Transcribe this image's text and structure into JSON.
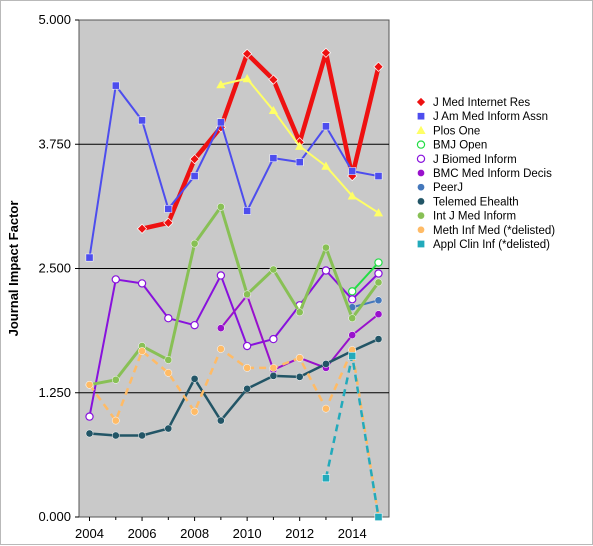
{
  "chart_data": {
    "type": "line",
    "title": "",
    "xlabel": "",
    "ylabel": "Journal Impact Factor",
    "xlim": [
      2003.6,
      2015.4
    ],
    "ylim": [
      0,
      5
    ],
    "x_ticks": [
      2004,
      2006,
      2008,
      2010,
      2012,
      2014
    ],
    "x_tick_labels": [
      "2004",
      "2006",
      "2008",
      "2010",
      "2012",
      "2014"
    ],
    "y_ticks": [
      0,
      1.25,
      2.5,
      3.75,
      5
    ],
    "y_tick_labels": [
      "0.000",
      "1.250",
      "2.500",
      "3.750",
      "5.000"
    ],
    "grid": "horizontal major lines at y ticks",
    "legend_position": "right",
    "plot_background": "#c9c9c9",
    "series": [
      {
        "name": "J Med Internet Res",
        "color": "#ee1111",
        "marker": "diamond",
        "dashed": false,
        "width": 4.5,
        "x": [
          2006,
          2007,
          2008,
          2009,
          2010,
          2011,
          2012,
          2013,
          2014,
          2015
        ],
        "y": [
          2.9,
          2.96,
          3.6,
          3.92,
          4.66,
          4.4,
          3.77,
          4.67,
          3.43,
          4.53
        ]
      },
      {
        "name": "J Am Med Inform Assn",
        "color": "#4d4dee",
        "marker": "square",
        "dashed": false,
        "width": 2,
        "x": [
          2004,
          2005,
          2006,
          2007,
          2008,
          2009,
          2010,
          2011,
          2012,
          2013,
          2014,
          2015
        ],
        "y": [
          2.61,
          4.34,
          3.99,
          3.1,
          3.43,
          3.97,
          3.08,
          3.61,
          3.57,
          3.93,
          3.48,
          3.43
        ]
      },
      {
        "name": "Plos One",
        "color": "#ffff66",
        "marker": "triangle",
        "dashed": false,
        "width": 2,
        "x": [
          2009,
          2010,
          2011,
          2012,
          2013,
          2014,
          2015
        ],
        "y": [
          4.35,
          4.41,
          4.09,
          3.73,
          3.53,
          3.23,
          3.06
        ]
      },
      {
        "name": "BMJ Open",
        "color": "#22dd44",
        "marker": "circle-open",
        "dashed": false,
        "width": 2,
        "x": [
          2014,
          2015
        ],
        "y": [
          2.27,
          2.56
        ]
      },
      {
        "name": "J Biomed Inform",
        "color": "#8811dd",
        "marker": "circle-open",
        "dashed": false,
        "width": 2,
        "x": [
          2004,
          2005,
          2006,
          2007,
          2008,
          2009,
          2010,
          2011,
          2012,
          2013,
          2014,
          2015
        ],
        "y": [
          1.01,
          2.39,
          2.35,
          2.0,
          1.93,
          2.43,
          1.72,
          1.79,
          2.13,
          2.48,
          2.19,
          2.45
        ]
      },
      {
        "name": "BMC Med Inform Decis",
        "color": "#9911cc",
        "marker": "circle",
        "dashed": false,
        "width": 2,
        "x": [
          2009,
          2010,
          2011,
          2012,
          2013,
          2014,
          2015
        ],
        "y": [
          1.9,
          2.23,
          1.48,
          1.6,
          1.5,
          1.83,
          2.04
        ]
      },
      {
        "name": "PeerJ",
        "color": "#4477bb",
        "marker": "circle",
        "dashed": false,
        "width": 2,
        "x": [
          2014,
          2015
        ],
        "y": [
          2.11,
          2.18
        ]
      },
      {
        "name": "Telemed Ehealth",
        "color": "#225566",
        "marker": "circle",
        "dashed": false,
        "width": 2.5,
        "x": [
          2004,
          2005,
          2006,
          2007,
          2008,
          2009,
          2010,
          2011,
          2012,
          2013,
          2014,
          2015
        ],
        "y": [
          0.84,
          0.82,
          0.82,
          0.89,
          1.39,
          0.97,
          1.29,
          1.42,
          1.41,
          1.54,
          1.67,
          1.79
        ]
      },
      {
        "name": "Int J Med Inform",
        "color": "#88c055",
        "marker": "circle",
        "dashed": false,
        "width": 3,
        "x": [
          2004,
          2005,
          2006,
          2007,
          2008,
          2009,
          2010,
          2011,
          2012,
          2013,
          2014,
          2015
        ],
        "y": [
          1.33,
          1.38,
          1.72,
          1.58,
          2.75,
          3.12,
          2.24,
          2.49,
          2.06,
          2.71,
          2.0,
          2.36
        ]
      },
      {
        "name": "Meth Inf Med (*delisted)",
        "color": "#ffbb66",
        "marker": "circle",
        "dashed": true,
        "width": 2.5,
        "x": [
          2004,
          2005,
          2006,
          2007,
          2008,
          2009,
          2010,
          2011,
          2012,
          2013,
          2014,
          2015
        ],
        "y": [
          1.33,
          0.97,
          1.67,
          1.45,
          1.06,
          1.69,
          1.5,
          1.5,
          1.6,
          1.09,
          1.68,
          0.0
        ]
      },
      {
        "name": "Appl Clin Inf (*delisted)",
        "color": "#22aabb",
        "marker": "square",
        "dashed": true,
        "width": 2.5,
        "x": [
          2013,
          2014,
          2015
        ],
        "y": [
          0.39,
          1.62,
          0.0
        ]
      }
    ]
  }
}
